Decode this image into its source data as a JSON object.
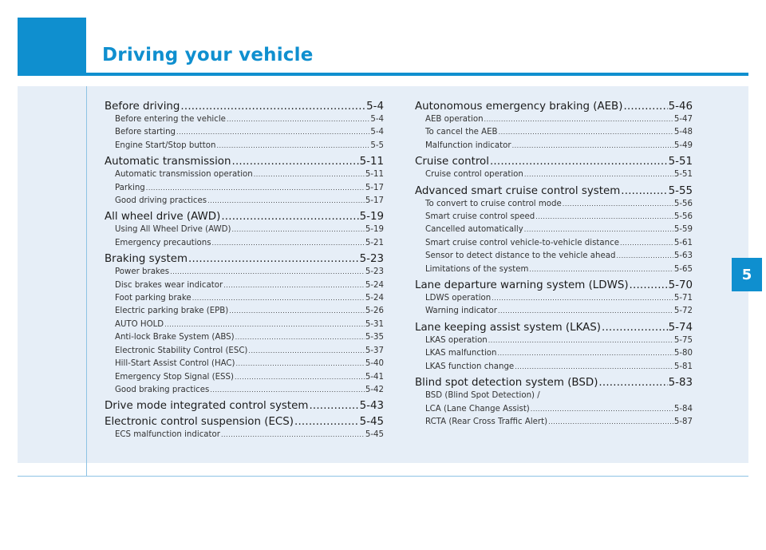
{
  "chapter": {
    "title": "Driving your vehicle",
    "tab_number": "5"
  },
  "toc": {
    "left": [
      {
        "type": "section",
        "label": "Before driving",
        "page": "5-4"
      },
      {
        "type": "sub",
        "label": "Before entering the vehicle",
        "page": "5-4"
      },
      {
        "type": "sub",
        "label": "Before starting",
        "page": "5-4"
      },
      {
        "type": "sub",
        "label": "Engine Start/Stop button",
        "page": "5-5"
      },
      {
        "type": "section",
        "label": "Automatic transmission",
        "page": "5-11"
      },
      {
        "type": "sub",
        "label": "Automatic transmission operation",
        "page": "5-11"
      },
      {
        "type": "sub",
        "label": "Parking",
        "page": "5-17"
      },
      {
        "type": "sub",
        "label": "Good driving practices",
        "page": "5-17"
      },
      {
        "type": "section",
        "label": "All wheel drive (AWD)",
        "page": "5-19"
      },
      {
        "type": "sub",
        "label": "Using All Wheel Drive (AWD)",
        "page": "5-19"
      },
      {
        "type": "sub",
        "label": "Emergency precautions",
        "page": "5-21"
      },
      {
        "type": "section",
        "label": "Braking system",
        "page": "5-23"
      },
      {
        "type": "sub",
        "label": "Power brakes",
        "page": "5-23"
      },
      {
        "type": "sub",
        "label": "Disc brakes wear indicator",
        "page": "5-24"
      },
      {
        "type": "sub",
        "label": "Foot parking brake",
        "page": "5-24"
      },
      {
        "type": "sub",
        "label": "Electric parking brake (EPB)",
        "page": "5-26"
      },
      {
        "type": "sub",
        "label": "AUTO HOLD",
        "page": "5-31"
      },
      {
        "type": "sub",
        "label": "Anti-lock Brake System (ABS)",
        "page": "5-35"
      },
      {
        "type": "sub",
        "label": "Electronic Stability Control (ESC)",
        "page": "5-37"
      },
      {
        "type": "sub",
        "label": "Hill-Start  Assist Control (HAC)",
        "page": "5-40"
      },
      {
        "type": "sub",
        "label": "Emergency Stop Signal (ESS)",
        "page": "5-41"
      },
      {
        "type": "sub",
        "label": "Good braking practices",
        "page": "5-42"
      },
      {
        "type": "section",
        "label": "Drive mode integrated control system",
        "page": "5-43"
      },
      {
        "type": "section",
        "label": "Electronic control suspension (ECS)",
        "page": "5-45"
      },
      {
        "type": "sub",
        "label": "ECS malfunction indicator",
        "page": "5-45"
      }
    ],
    "right": [
      {
        "type": "section",
        "label": "Autonomous emergency braking (AEB)",
        "page": "5-46"
      },
      {
        "type": "sub",
        "label": "AEB operation",
        "page": "5-47"
      },
      {
        "type": "sub",
        "label": "To cancel the AEB",
        "page": "5-48"
      },
      {
        "type": "sub",
        "label": "Malfunction indicator",
        "page": "5-49"
      },
      {
        "type": "section",
        "label": "Cruise control",
        "page": "5-51"
      },
      {
        "type": "sub",
        "label": "Cruise control operation",
        "page": "5-51"
      },
      {
        "type": "section",
        "label": "Advanced smart cruise control system",
        "page": "5-55"
      },
      {
        "type": "sub",
        "label": "To convert to cruise control mode",
        "page": "5-56"
      },
      {
        "type": "sub",
        "label": "Smart cruise control speed",
        "page": "5-56"
      },
      {
        "type": "sub",
        "label": "Cancelled automatically",
        "page": "5-59"
      },
      {
        "type": "sub",
        "label": "Smart cruise control vehicle-to-vehicle distance",
        "page": "5-61"
      },
      {
        "type": "sub",
        "label": "Sensor to detect distance to the vehicle ahead",
        "page": "5-63"
      },
      {
        "type": "sub",
        "label": "Limitations of the system",
        "page": "5-65"
      },
      {
        "type": "section",
        "label": "Lane departure warning system (LDWS)",
        "page": "5-70"
      },
      {
        "type": "sub",
        "label": "LDWS operation",
        "page": "5-71"
      },
      {
        "type": "sub",
        "label": "Warning indicator",
        "page": "5-72"
      },
      {
        "type": "section",
        "label": "Lane keeping assist system (LKAS)",
        "page": "5-74"
      },
      {
        "type": "sub",
        "label": "LKAS operation",
        "page": "5-75"
      },
      {
        "type": "sub",
        "label": "LKAS malfunction",
        "page": "5-80"
      },
      {
        "type": "sub",
        "label": "LKAS function change",
        "page": "5-81"
      },
      {
        "type": "section",
        "label": "Blind spot detection system (BSD)",
        "page": "5-83"
      },
      {
        "type": "plain",
        "label": "BSD (Blind Spot Detection) /"
      },
      {
        "type": "sub",
        "label": "LCA (Lane Change Assist)",
        "page": "5-84"
      },
      {
        "type": "sub",
        "label": "RCTA (Rear Cross Traffic Alert)",
        "page": "5-87"
      }
    ]
  },
  "colors": {
    "accent": "#0f8fcf",
    "panel": "#e6eef7",
    "rule": "#8ec3e4"
  }
}
